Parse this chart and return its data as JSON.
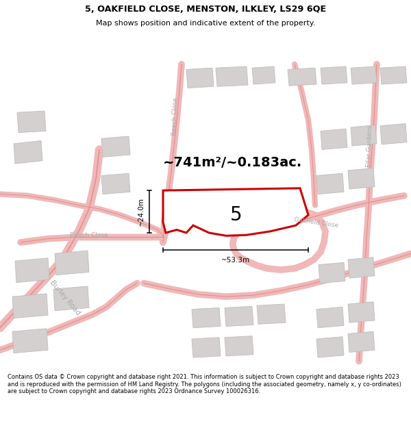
{
  "title_line1": "5, OAKFIELD CLOSE, MENSTON, ILKLEY, LS29 6QE",
  "title_line2": "Map shows position and indicative extent of the property.",
  "footer": "Contains OS data © Crown copyright and database right 2021. This information is subject to Crown copyright and database rights 2023 and is reproduced with the permission of HM Land Registry. The polygons (including the associated geometry, namely x, y co-ordinates) are subject to Crown copyright and database rights 2023 Ordnance Survey 100026316.",
  "area_text": "~741m²/~0.183ac.",
  "width_text": "~53.3m",
  "height_text": "~24.0m",
  "number_text": "5",
  "map_bg": "#f7f3f3",
  "road_color": "#f0b8b8",
  "road_edge_color": "#e08888",
  "building_color": "#d4d0d0",
  "building_edge": "#c0bcbc",
  "plot_fill": "#ffffff",
  "plot_edge": "#cc0000",
  "road_label_color": "#aaaaaa",
  "title_color": "#000000",
  "footer_color": "#000000",
  "title_bg": "#ffffff",
  "footer_bg": "#ffffff"
}
